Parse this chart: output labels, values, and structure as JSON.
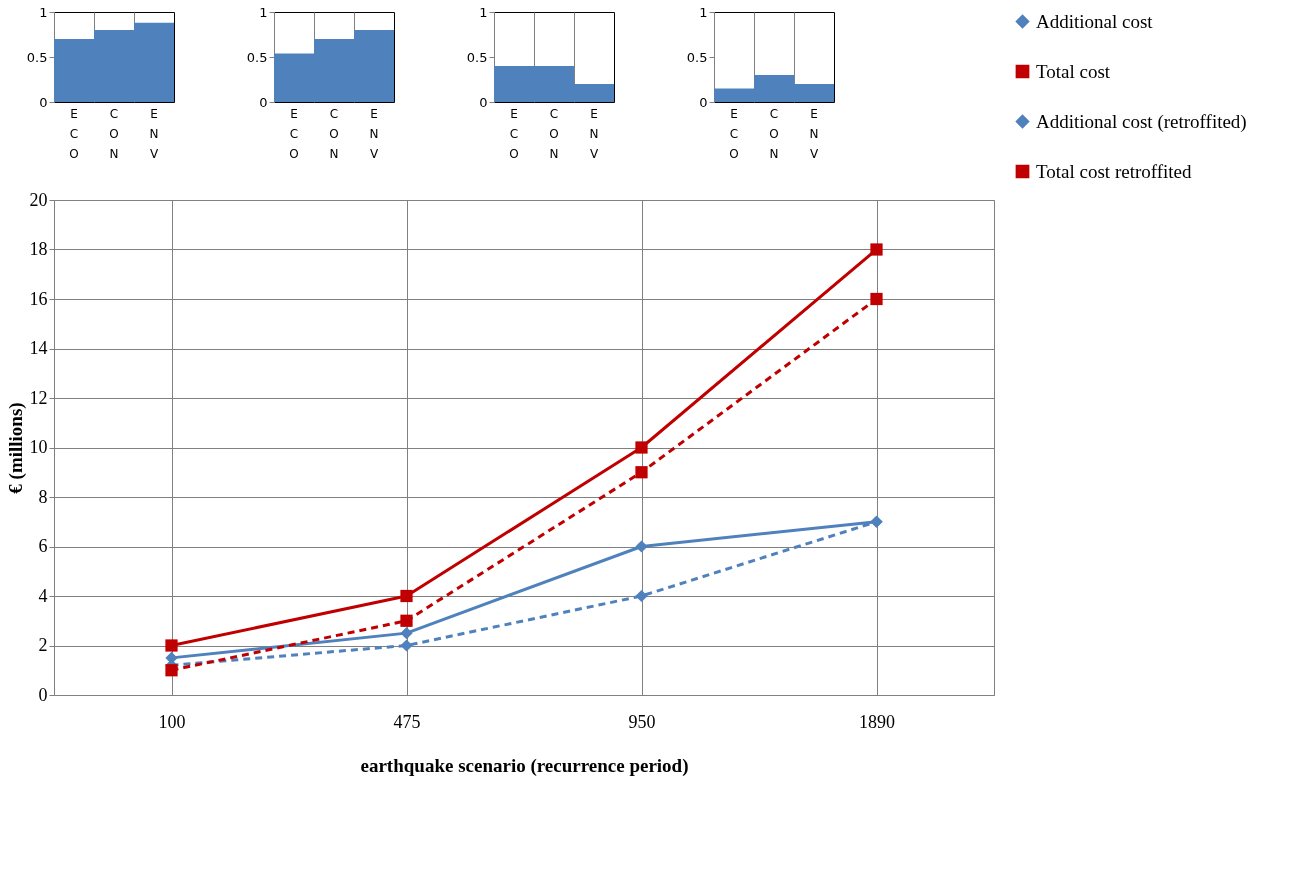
{
  "chart_data": [
    {
      "type": "bar",
      "categories": [
        "ECO",
        "CON",
        "ENV"
      ],
      "values": [
        0.7,
        0.8,
        0.88
      ],
      "color": "#4f81bd",
      "ylim": [
        0,
        1
      ],
      "yticks": [
        0,
        0.5,
        1
      ],
      "grid": "x"
    },
    {
      "type": "bar",
      "categories": [
        "ECO",
        "CON",
        "ENV"
      ],
      "values": [
        0.54,
        0.7,
        0.8
      ],
      "color": "#4f81bd",
      "ylim": [
        0,
        1
      ],
      "yticks": [
        0,
        0.5,
        1
      ],
      "grid": "x"
    },
    {
      "type": "bar",
      "categories": [
        "ECO",
        "CON",
        "ENV"
      ],
      "values": [
        0.4,
        0.4,
        0.2
      ],
      "color": "#4f81bd",
      "ylim": [
        0,
        1
      ],
      "yticks": [
        0,
        0.5,
        1
      ],
      "grid": "x"
    },
    {
      "type": "bar",
      "categories": [
        "ECO",
        "CON",
        "ENV"
      ],
      "values": [
        0.15,
        0.3,
        0.2
      ],
      "color": "#4f81bd",
      "ylim": [
        0,
        1
      ],
      "yticks": [
        0,
        0.5,
        1
      ],
      "grid": "x"
    },
    {
      "type": "line",
      "xlabel": "earthquake scenario (recurrence period)",
      "ylabel": "€  (millions)",
      "categories": [
        "100",
        "475",
        "950",
        "1890"
      ],
      "ylim": [
        0,
        20
      ],
      "yticks": [
        0,
        2,
        4,
        6,
        8,
        10,
        12,
        14,
        16,
        18,
        20
      ],
      "grid": true,
      "legend": "right",
      "series": [
        {
          "name": "Additional cost",
          "color": "#4f81bd",
          "values": [
            1.5,
            2.5,
            6,
            7
          ],
          "marker": "diamond",
          "line_style": "solid"
        },
        {
          "name": "Total cost",
          "color": "#c00000",
          "values": [
            2,
            4,
            10,
            18
          ],
          "marker": "square",
          "line_style": "solid"
        },
        {
          "name": "Additional cost (retroffited)",
          "color": "#4f81bd",
          "values": [
            1.2,
            2,
            4,
            7
          ],
          "marker": "diamond",
          "line_style": "dashed"
        },
        {
          "name": "Total cost retroffited",
          "color": "#c00000",
          "values": [
            1,
            3,
            9,
            16
          ],
          "marker": "square",
          "line_style": "dashed"
        }
      ]
    }
  ]
}
